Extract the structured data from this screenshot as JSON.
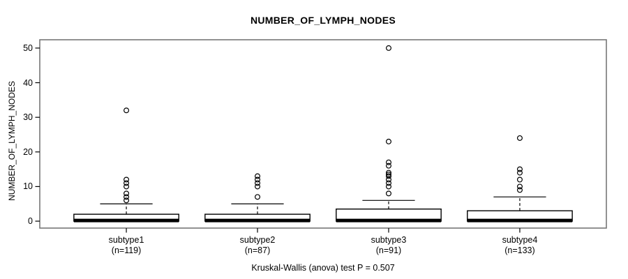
{
  "colors": {
    "background": "#ffffff",
    "frame": "#777777",
    "data_line": "#000000",
    "box_fill": "#ffffff",
    "text": "#000000"
  },
  "chart_data": {
    "type": "boxplot",
    "title": "NUMBER_OF_LYMPH_NODES",
    "ylabel": "NUMBER_OF_LYMPH_NODES",
    "footer": "Kruskal-Wallis (anova) test P = 0.507",
    "yticks": [
      "0",
      "10",
      "20",
      "30",
      "40",
      "50"
    ],
    "ytick_values": [
      0,
      10,
      20,
      30,
      40,
      50
    ],
    "ylim": [
      -2,
      52.4
    ],
    "xlim": [
      0.34,
      4.66
    ],
    "grid": false,
    "legend": null,
    "groups": [
      {
        "label": "subtype1",
        "sublabel": "(n=119)",
        "n": 119,
        "pos": 1,
        "whisker_low": 0,
        "q1": 0,
        "median": 0,
        "q3": 2,
        "whisker_high": 5,
        "outliers": [
          6,
          7,
          8,
          10,
          11,
          12,
          32
        ]
      },
      {
        "label": "subtype2",
        "sublabel": "(n=87)",
        "n": 87,
        "pos": 2,
        "whisker_low": 0,
        "q1": 0,
        "median": 0,
        "q3": 2,
        "whisker_high": 5,
        "outliers": [
          7,
          10,
          11,
          12,
          13
        ]
      },
      {
        "label": "subtype3",
        "sublabel": "(n=91)",
        "n": 91,
        "pos": 3,
        "whisker_low": 0,
        "q1": 0,
        "median": 0,
        "q3": 3.5,
        "whisker_high": 6,
        "outliers": [
          8,
          10,
          11,
          12,
          13,
          13.5,
          14,
          16,
          17,
          23,
          50
        ]
      },
      {
        "label": "subtype4",
        "sublabel": "(n=133)",
        "n": 133,
        "pos": 4,
        "whisker_low": 0,
        "q1": 0,
        "median": 0,
        "q3": 3,
        "whisker_high": 7,
        "outliers": [
          9,
          10,
          12,
          14,
          15,
          24
        ]
      }
    ],
    "box_width_pos_units": 0.8,
    "staple_width_pos_units": 0.4
  }
}
